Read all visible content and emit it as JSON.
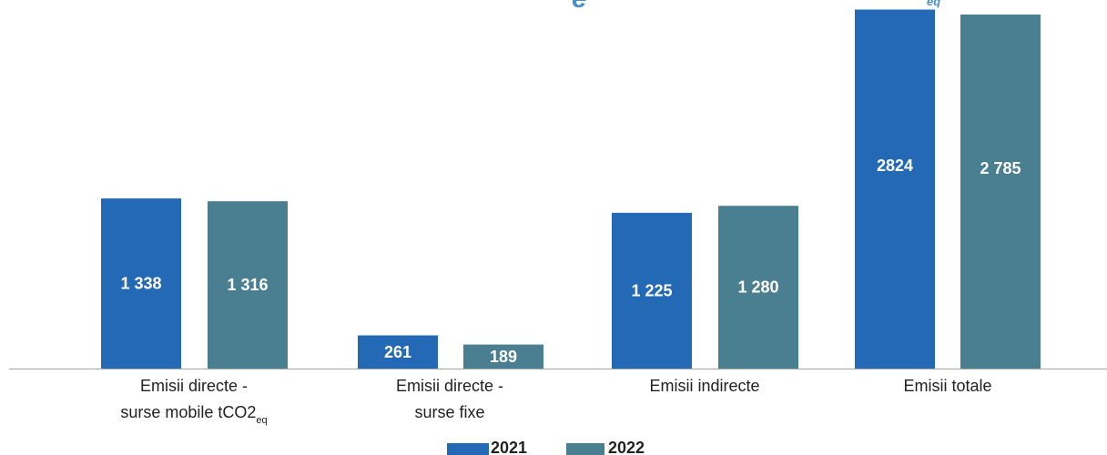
{
  "colors": {
    "series_2021": "#2369b5",
    "series_2022": "#4a7f91",
    "axis": "#a6a6a6",
    "title": "#4a90c8"
  },
  "title_fragment": {
    "glyph": "e",
    "subscript": "eq"
  },
  "chart_data": {
    "type": "bar",
    "title": "",
    "xlabel": "",
    "ylabel": "",
    "ylim": [
      0,
      2900
    ],
    "grid": false,
    "legend_position": "bottom",
    "categories": [
      {
        "line1": "Emisii directe -",
        "line2": "surse mobile tCO2",
        "line2_sub": "eq"
      },
      {
        "line1": "Emisii directe -",
        "line2": "surse fixe",
        "line2_sub": ""
      },
      {
        "line1": "Emisii indirecte",
        "line2": "",
        "line2_sub": ""
      },
      {
        "line1": "Emisii totale",
        "line2": "",
        "line2_sub": ""
      }
    ],
    "series": [
      {
        "name": "2021",
        "values": [
          1338,
          261,
          1225,
          2824
        ],
        "labels": [
          "1 338",
          "261",
          "1 225",
          "2824"
        ]
      },
      {
        "name": "2022",
        "values": [
          1316,
          189,
          1280,
          2785
        ],
        "labels": [
          "1 316",
          "189",
          "1 280",
          "2 785"
        ]
      }
    ]
  }
}
